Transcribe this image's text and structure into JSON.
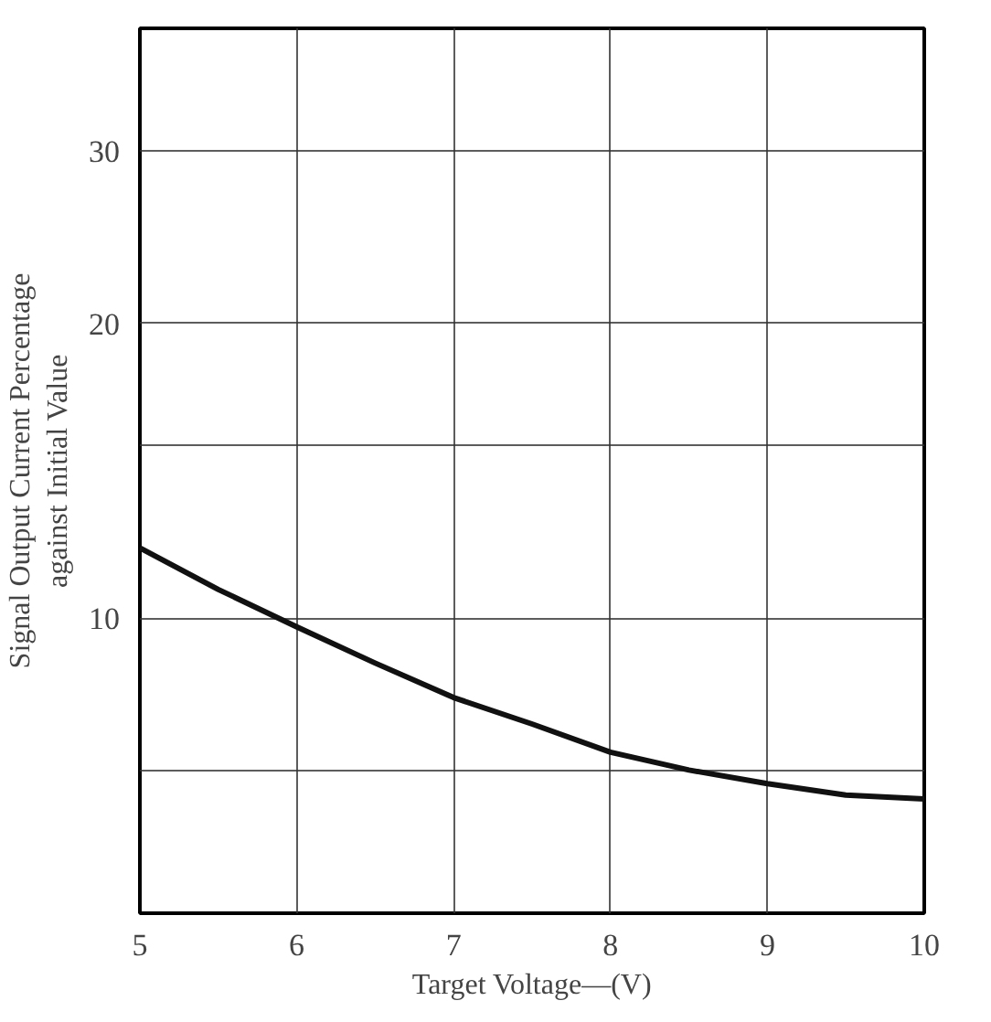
{
  "chart_data": {
    "type": "line",
    "xlabel": "Target Voltage—(V)",
    "ylabel": "Signal Output Current Percentage\nagainst Initial Value",
    "x": [
      5,
      5.5,
      6,
      6.5,
      7,
      7.5,
      8,
      8.5,
      9,
      9.5,
      10
    ],
    "series": [
      {
        "color": "#111111",
        "values": [
          11.8,
          10.7,
          9.8,
          9.0,
          8.3,
          7.8,
          7.3,
          7.0,
          6.78,
          6.6,
          6.54
        ]
      }
    ],
    "xlim": [
      5,
      10
    ],
    "xticks": [
      5,
      6,
      7,
      8,
      9,
      10
    ],
    "ylim": [
      5,
      40
    ],
    "yticks": [
      {
        "value": 7,
        "label": null
      },
      10,
      {
        "value": 15,
        "label": null
      },
      20,
      30
    ],
    "log": "y",
    "grid": true,
    "marker": "none",
    "line_style": "solid"
  }
}
